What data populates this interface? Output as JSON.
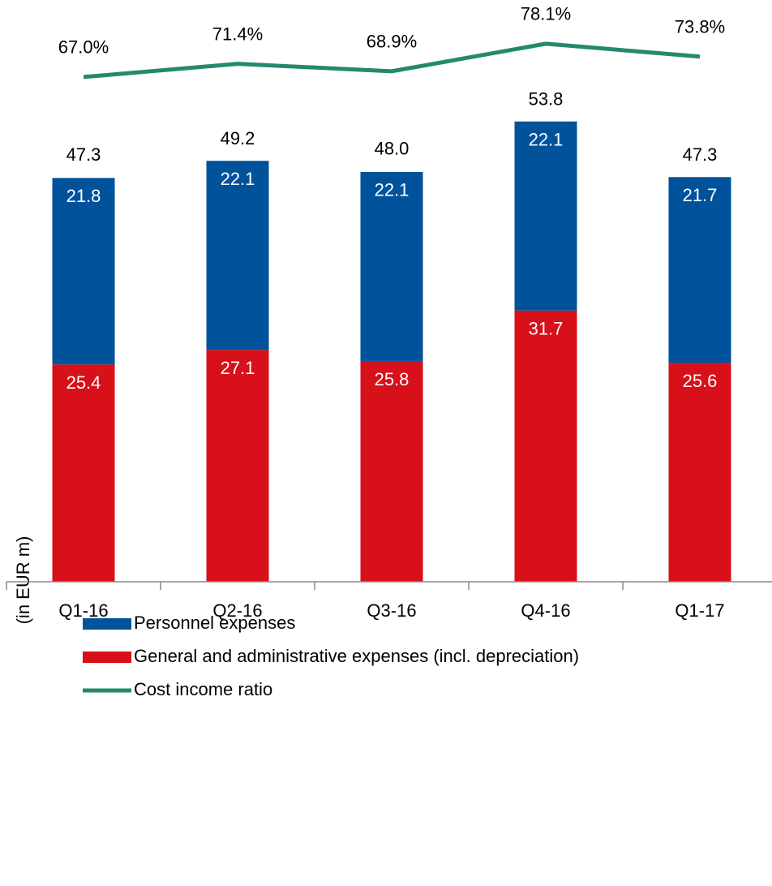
{
  "chart_data": {
    "type": "bar",
    "stacked": true,
    "y_axis_label": "(in EUR m)",
    "categories": [
      "Q1-16",
      "Q2-16",
      "Q3-16",
      "Q4-16",
      "Q1-17"
    ],
    "series": [
      {
        "name": "General and administrative expenses (incl. depreciation)",
        "color": "#d7101a",
        "values": [
          25.4,
          27.1,
          25.8,
          31.7,
          25.6
        ]
      },
      {
        "name": "Personnel expenses",
        "color": "#00529b",
        "values": [
          21.8,
          22.1,
          22.1,
          22.1,
          21.7
        ]
      },
      {
        "name": "Cost income ratio",
        "color": "#23896f",
        "type": "line",
        "axis": "y2",
        "values": [
          67.0,
          71.4,
          68.9,
          78.1,
          73.8
        ],
        "value_labels": [
          "67.0%",
          "71.4%",
          "68.9%",
          "78.1%",
          "73.8%"
        ]
      }
    ],
    "totals": [
      47.3,
      49.2,
      48.0,
      53.8,
      47.3
    ],
    "totals_labels": [
      "47.3",
      "49.2",
      "48.0",
      "53.8",
      "47.3"
    ],
    "ylim": [
      0,
      68
    ],
    "y2lim": [
      -101.5,
      92.7
    ]
  }
}
